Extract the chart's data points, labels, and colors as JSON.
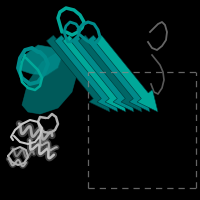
{
  "background_color": "#000000",
  "teal_color": "#008B8B",
  "teal_dark": "#006666",
  "teal_light": "#00A899",
  "gray_color": "#B0B0B0",
  "gray_light": "#C8C8C8",
  "gray_dark": "#888888",
  "dashed_box_color": "#888888",
  "fig_width": 2.0,
  "fig_height": 2.0,
  "dpi": 100
}
